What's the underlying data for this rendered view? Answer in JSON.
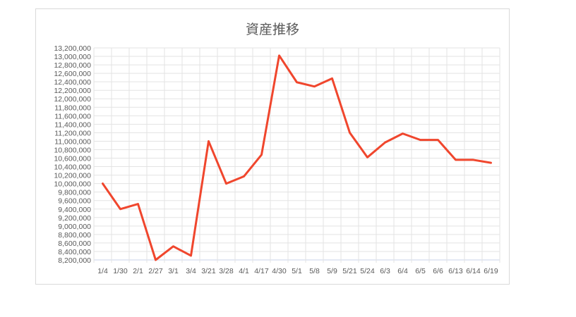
{
  "chart_data": {
    "type": "line",
    "title": "資産推移",
    "xlabel": "",
    "ylabel": "",
    "categories": [
      "1/4",
      "1/30",
      "2/1",
      "2/27",
      "3/1",
      "3/4",
      "3/21",
      "3/28",
      "4/1",
      "4/17",
      "4/30",
      "5/1",
      "5/8",
      "5/9",
      "5/21",
      "5/24",
      "6/3",
      "6/4",
      "6/5",
      "6/6",
      "6/13",
      "6/14",
      "6/19"
    ],
    "values": [
      10000000,
      9400000,
      9520000,
      8200000,
      8520000,
      8300000,
      11000000,
      10000000,
      10170000,
      10680000,
      13020000,
      12390000,
      12290000,
      12480000,
      11200000,
      10620000,
      10970000,
      11180000,
      11030000,
      11030000,
      10560000,
      10560000,
      10490000
    ],
    "ylim": [
      8200000,
      13200000
    ],
    "ytick_step": 200000,
    "grid": true,
    "legend": "none",
    "line_color": "#f0462d"
  }
}
